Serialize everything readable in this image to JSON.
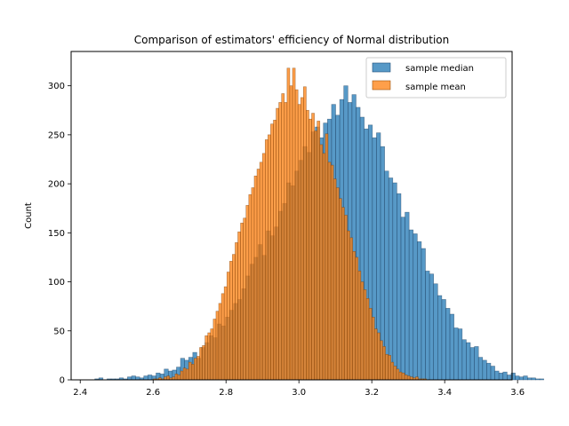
{
  "chart_data": {
    "type": "bar",
    "subtype": "histogram",
    "title": "Comparison of estimators' efficiency of Normal distribution",
    "xlabel": "",
    "ylabel": "Count",
    "xlim": [
      2.375,
      3.585
    ],
    "ylim": [
      0,
      335
    ],
    "xticks": [
      2.4,
      2.6,
      2.8,
      3.0,
      3.2,
      3.4,
      3.6
    ],
    "xtick_labels": [
      "2.4",
      "2.6",
      "2.8",
      "3.0",
      "3.2",
      "3.4",
      "3.6"
    ],
    "yticks": [
      0,
      50,
      100,
      150,
      200,
      250,
      300
    ],
    "ytick_labels": [
      "0",
      "50",
      "100",
      "150",
      "200",
      "250",
      "300"
    ],
    "grid": false,
    "legend": {
      "position": "top-right",
      "entries": [
        "sample median",
        "sample mean"
      ]
    },
    "series": [
      {
        "name": "sample median",
        "color": "#1f77b4",
        "bin_start": 2.44,
        "bin_width": 0.0112,
        "values": [
          1,
          2,
          0,
          1,
          1,
          1,
          2,
          1,
          3,
          4,
          3,
          2,
          4,
          5,
          4,
          7,
          6,
          11,
          9,
          10,
          13,
          22,
          20,
          23,
          28,
          22,
          33,
          38,
          45,
          43,
          57,
          55,
          64,
          71,
          78,
          82,
          93,
          106,
          118,
          125,
          138,
          127,
          152,
          147,
          156,
          172,
          180,
          201,
          198,
          213,
          224,
          238,
          232,
          253,
          258,
          247,
          262,
          266,
          281,
          270,
          286,
          300,
          283,
          291,
          278,
          268,
          256,
          260,
          247,
          252,
          238,
          213,
          206,
          201,
          190,
          166,
          171,
          153,
          149,
          141,
          134,
          111,
          108,
          98,
          86,
          82,
          73,
          67,
          53,
          52,
          41,
          38,
          33,
          34,
          23,
          20,
          17,
          14,
          9,
          7,
          8,
          5,
          7,
          4,
          3,
          4,
          2,
          2,
          1,
          1
        ]
      },
      {
        "name": "sample mean",
        "color": "#ff7f0e",
        "bin_start": 2.6,
        "bin_width": 0.0075,
        "values": [
          1,
          1,
          2,
          1,
          3,
          4,
          2,
          3,
          6,
          5,
          9,
          12,
          11,
          18,
          16,
          22,
          24,
          33,
          35,
          45,
          48,
          52,
          62,
          70,
          78,
          88,
          95,
          110,
          121,
          128,
          140,
          151,
          160,
          165,
          178,
          189,
          196,
          208,
          215,
          222,
          231,
          245,
          250,
          261,
          265,
          277,
          283,
          292,
          283,
          318,
          300,
          318,
          296,
          281,
          288,
          299,
          275,
          266,
          272,
          254,
          264,
          240,
          231,
          251,
          222,
          219,
          205,
          196,
          185,
          176,
          168,
          152,
          145,
          131,
          125,
          111,
          100,
          92,
          83,
          73,
          64,
          52,
          48,
          40,
          34,
          26,
          25,
          18,
          14,
          11,
          8,
          7,
          5,
          4,
          3,
          2,
          3,
          1,
          1,
          1
        ]
      }
    ]
  }
}
